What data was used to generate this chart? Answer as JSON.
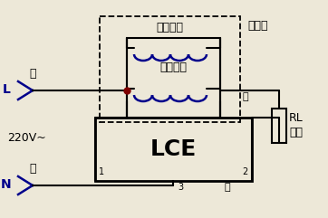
{
  "bg_color": "#ede8d8",
  "line_color": "#000000",
  "blue_color": "#00008B",
  "coil_color": "#00008B",
  "dot_color": "#800000",
  "labels": {
    "L": "L",
    "N": "N",
    "jin_L": "进",
    "jin_N": "进",
    "voltage_220": "220V~",
    "voltage_coil": "电压线圈",
    "current_coil": "电流线圈",
    "meter_label": "电度表",
    "LCE": "LCE",
    "RL": "RL",
    "load": "负载",
    "out1": "出",
    "out2": "出",
    "n1": "1",
    "n2": "2",
    "n3": "3"
  },
  "figsize": [
    3.62,
    2.41
  ],
  "dpi": 100
}
